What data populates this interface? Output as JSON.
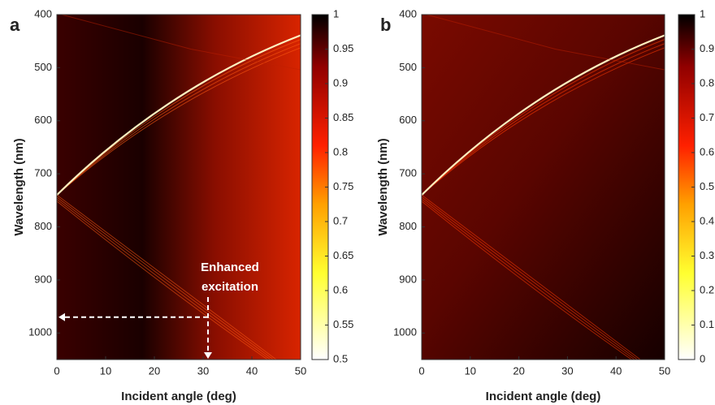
{
  "chart_data": [
    {
      "type": "heatmap",
      "panel_label": "a",
      "xlabel": "Incident angle (deg)",
      "ylabel": "Wavelength (nm)",
      "xlim": [
        0,
        50
      ],
      "xticks": [
        0,
        10,
        20,
        30,
        40,
        50
      ],
      "ylim": [
        400,
        1050
      ],
      "y_inverted": true,
      "yticks": [
        400,
        500,
        600,
        700,
        800,
        900,
        1000
      ],
      "colormap": "hot",
      "colorbar": {
        "lim": [
          0.5,
          1
        ],
        "ticks": [
          0.5,
          0.55,
          0.6,
          0.65,
          0.7,
          0.75,
          0.8,
          0.85,
          0.9,
          0.95,
          1
        ]
      },
      "annotation": [
        "Enhanced",
        "excitation"
      ]
    },
    {
      "type": "heatmap",
      "panel_label": "b",
      "xlabel": "Incident angle (deg)",
      "ylabel": "Wavelength (nm)",
      "xlim": [
        0,
        50
      ],
      "xticks": [
        0,
        10,
        20,
        30,
        40,
        50
      ],
      "ylim": [
        400,
        1050
      ],
      "y_inverted": true,
      "yticks": [
        400,
        500,
        600,
        700,
        800,
        900,
        1000
      ],
      "colormap": "hot",
      "colorbar": {
        "lim": [
          0,
          1
        ],
        "ticks": [
          0,
          0.1,
          0.2,
          0.3,
          0.4,
          0.5,
          0.6,
          0.7,
          0.8,
          0.9,
          1
        ]
      }
    }
  ]
}
